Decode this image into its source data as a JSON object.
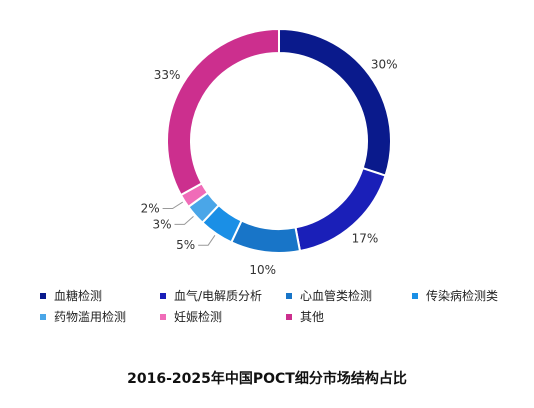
{
  "chart_data": {
    "type": "pie",
    "donut": true,
    "title": "2016-2025年中国POCT细分市场结构占比",
    "categories": [
      "血糖检测",
      "血气/电解质分析",
      "心血管类检测",
      "传染病检测类",
      "药物滥用检测",
      "妊娠检测",
      "其他"
    ],
    "values": [
      30,
      17,
      10,
      5,
      3,
      2,
      33
    ],
    "value_labels": [
      "30%",
      "17%",
      "10%",
      "5%",
      "3%",
      "2%",
      "33%"
    ],
    "colors": [
      "#0a1a8c",
      "#1a1fb8",
      "#1875c8",
      "#1a8fe6",
      "#4aa6e8",
      "#f06cb8",
      "#cc2f8e"
    ],
    "legend_position": "bottom"
  }
}
